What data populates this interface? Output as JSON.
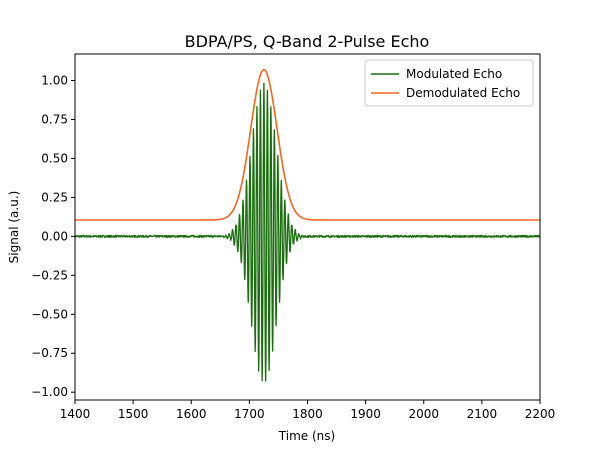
{
  "chart_data": {
    "type": "line",
    "title": "BDPA/PS, Q-Band 2-Pulse Echo",
    "xlabel": "Time (ns)",
    "ylabel": "Signal (a.u.)",
    "xlim": [
      1400,
      2200
    ],
    "ylim": [
      -1.05,
      1.17
    ],
    "xticks": [
      1400,
      1500,
      1600,
      1700,
      1800,
      1900,
      2000,
      2100,
      2200
    ],
    "xtick_labels": [
      "1400",
      "1500",
      "1600",
      "1700",
      "1800",
      "1900",
      "2000",
      "2100",
      "2200"
    ],
    "yticks": [
      -1.0,
      -0.75,
      -0.5,
      -0.25,
      0.0,
      0.25,
      0.5,
      0.75,
      1.0
    ],
    "ytick_labels": [
      "−1.00",
      "−0.75",
      "−0.50",
      "−0.25",
      "0.00",
      "0.25",
      "0.50",
      "0.75",
      "1.00"
    ],
    "grid": false,
    "legend_position": "top-right",
    "series": [
      {
        "name": "Modulated Echo",
        "color": "#1a6e0e",
        "style": "oscillating",
        "baseline": 0.0,
        "center": 1725,
        "width": 30,
        "period": 6,
        "peak_max": 0.98,
        "peak_min": -0.94
      },
      {
        "name": "Demodulated Echo",
        "color": "#f26722",
        "style": "envelope",
        "baseline": 0.105,
        "center": 1725,
        "width": 32,
        "peak": 1.07
      }
    ]
  }
}
